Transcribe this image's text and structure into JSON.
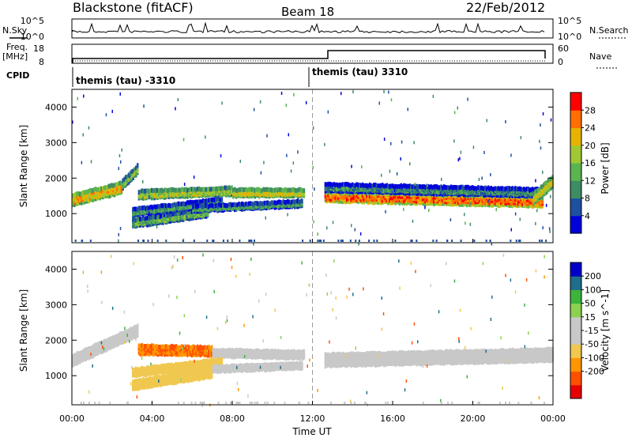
{
  "header": {
    "station": "Blackstone (fitACF)",
    "beam": "Beam 18",
    "date": "22/Feb/2012"
  },
  "status_panel": {
    "nsky_label": "N.Sky",
    "nsky_ticks": [
      "10^5",
      "10^0"
    ],
    "nsearch_label": "N.Search",
    "nsearch_ticks": [
      "10^5",
      "10^0"
    ],
    "freq_label": "Freq.",
    "freq_unit": "[MHz]",
    "freq_ticks": [
      "18",
      "8"
    ],
    "nave_label": "Nave",
    "nave_ticks": [
      "60",
      "0"
    ],
    "cpid_label": "CPID",
    "cpid_segments": [
      {
        "name": "themis (tau) -3310",
        "start_hour": 0,
        "end_hour": 12
      },
      {
        "name": "themis (tau) 3310",
        "start_hour": 12,
        "end_hour": 24
      }
    ]
  },
  "colors": {
    "power_scale": [
      "#0000dd",
      "#1e50a0",
      "#3c8c64",
      "#5ab450",
      "#a0c832",
      "#e6b400",
      "#ff6e00",
      "#ff0000"
    ],
    "velocity_scale": [
      "#e60000",
      "#ff5000",
      "#ff9600",
      "#f0c850",
      "#c8c8c8",
      "#c8c8c8",
      "#8cd250",
      "#3cb43c",
      "#1e6e8c",
      "#0000c8"
    ],
    "ground_scatter": "#c8c8c8"
  },
  "chart_data": [
    {
      "type": "heatmap",
      "title": "Power",
      "x_axis": {
        "label": "Time UT",
        "ticks": [
          "00:00",
          "04:00",
          "08:00",
          "12:00",
          "16:00",
          "20:00",
          "00:00"
        ],
        "range_hours": [
          0,
          24
        ]
      },
      "y_axis": {
        "label": "Slant Range [km]",
        "ticks": [
          1000,
          2000,
          3000,
          4000
        ],
        "range": [
          180,
          4500
        ]
      },
      "colorbar": {
        "label": "Power [dB]",
        "ticks": [
          "4",
          "8",
          "12",
          "16",
          "20",
          "24",
          "28"
        ],
        "range": [
          0,
          32
        ]
      },
      "bands": [
        {
          "start_hour": 0.0,
          "end_hour": 2.5,
          "range_start": 1450,
          "range_end": 1800,
          "width_km": 260,
          "power_db": 22
        },
        {
          "start_hour": 2.5,
          "end_hour": 3.3,
          "range_start": 1900,
          "range_end": 2350,
          "width_km": 200,
          "power_db": 16
        },
        {
          "start_hour": 3.3,
          "end_hour": 8.0,
          "range_start": 1600,
          "range_end": 1700,
          "width_km": 180,
          "power_db": 18
        },
        {
          "start_hour": 8.0,
          "end_hour": 11.6,
          "range_start": 1650,
          "range_end": 1650,
          "width_km": 160,
          "power_db": 20
        },
        {
          "start_hour": 3.0,
          "end_hour": 6.8,
          "range_start": 800,
          "range_end": 1100,
          "width_km": 180,
          "power_db": 14
        },
        {
          "start_hour": 3.0,
          "end_hour": 7.5,
          "range_start": 1100,
          "range_end": 1400,
          "width_km": 160,
          "power_db": 12
        },
        {
          "start_hour": 6.0,
          "end_hour": 11.5,
          "range_start": 1200,
          "range_end": 1350,
          "width_km": 120,
          "power_db": 12
        },
        {
          "start_hour": 12.6,
          "end_hour": 23.5,
          "range_start": 1550,
          "range_end": 1400,
          "width_km": 240,
          "power_db": 26
        },
        {
          "start_hour": 12.6,
          "end_hour": 23.5,
          "range_start": 1800,
          "range_end": 1650,
          "width_km": 180,
          "power_db": 10
        },
        {
          "start_hour": 23.0,
          "end_hour": 24.0,
          "range_start": 1500,
          "range_end": 2000,
          "width_km": 260,
          "power_db": 20
        }
      ]
    },
    {
      "type": "heatmap",
      "title": "Velocity",
      "x_axis": {
        "label": "Time UT",
        "ticks": [
          "00:00",
          "04:00",
          "08:00",
          "12:00",
          "16:00",
          "20:00",
          "00:00"
        ],
        "range_hours": [
          0,
          24
        ]
      },
      "y_axis": {
        "label": "Slant Range [km]",
        "ticks": [
          1000,
          2000,
          3000,
          4000
        ],
        "range": [
          180,
          4500
        ]
      },
      "colorbar": {
        "label": "Velocity [m s^-1]",
        "ticks": [
          "200",
          "100",
          "50",
          "15",
          "-15",
          "-50",
          "-100",
          "-200"
        ],
        "range": [
          -250,
          250
        ]
      },
      "bands": [
        {
          "start_hour": 0.0,
          "end_hour": 3.3,
          "range_start": 1500,
          "range_end": 2350,
          "width_km": 240,
          "velocity": 0
        },
        {
          "start_hour": 3.3,
          "end_hour": 7.0,
          "range_start": 1800,
          "range_end": 1750,
          "width_km": 200,
          "velocity": -150
        },
        {
          "start_hour": 7.0,
          "end_hour": 11.6,
          "range_start": 1700,
          "range_end": 1650,
          "width_km": 160,
          "velocity": 30
        },
        {
          "start_hour": 3.0,
          "end_hour": 7.0,
          "range_start": 800,
          "range_end": 1150,
          "width_km": 200,
          "velocity": -70
        },
        {
          "start_hour": 3.0,
          "end_hour": 7.5,
          "range_start": 1150,
          "range_end": 1450,
          "width_km": 160,
          "velocity": -70
        },
        {
          "start_hour": 7.0,
          "end_hour": 11.5,
          "range_start": 1250,
          "range_end": 1350,
          "width_km": 120,
          "velocity": 30
        },
        {
          "start_hour": 12.6,
          "end_hour": 24.0,
          "range_start": 1500,
          "range_end": 1650,
          "width_km": 300,
          "velocity": 0
        }
      ]
    }
  ]
}
